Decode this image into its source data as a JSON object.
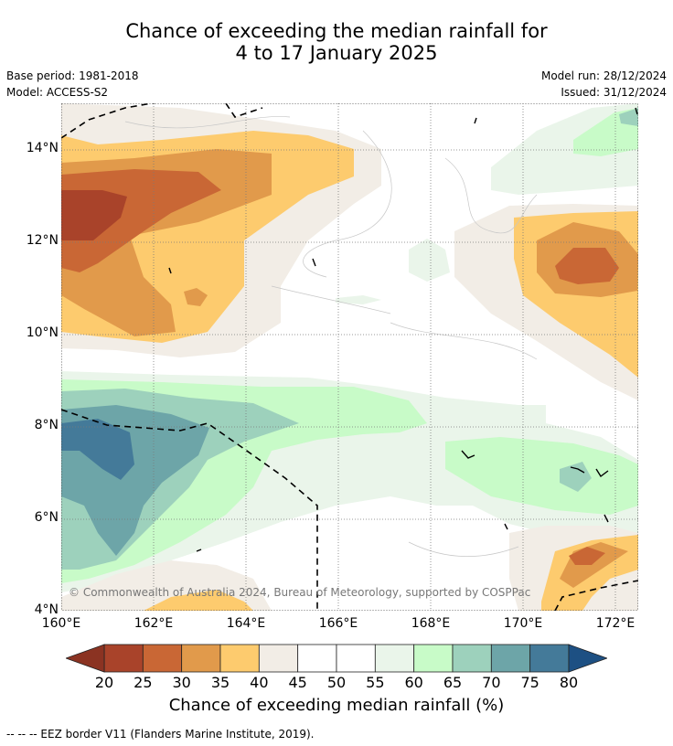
{
  "title": {
    "line1": "Chance of exceeding the median rainfall for",
    "line2": "4 to 17 January 2025"
  },
  "meta": {
    "base_period": "Base period: 1981-2018",
    "model": "Model: ACCESS-S2",
    "model_run": "Model run: 28/12/2024",
    "issued": "Issued: 31/12/2024"
  },
  "map": {
    "lat_labels": [
      "14°N",
      "12°N",
      "10°N",
      "8°N",
      "6°N",
      "4°N"
    ],
    "lon_labels": [
      "160°E",
      "162°E",
      "164°E",
      "166°E",
      "168°E",
      "170°E",
      "172°E"
    ],
    "copyright": "© Commonwealth of Australia 2024, Bureau of Meteorology, supported by COSPPac",
    "extent": {
      "lon_min": 160,
      "lon_max": 172.5,
      "lat_min": 4,
      "lat_max": 15
    }
  },
  "colorbar": {
    "ticks": [
      "20",
      "25",
      "30",
      "35",
      "40",
      "45",
      "50",
      "55",
      "60",
      "65",
      "70",
      "75",
      "80"
    ],
    "colors": [
      "#a9432a",
      "#c96735",
      "#e19a4b",
      "#fdcb6e",
      "#f2ede6",
      "#ffffff",
      "#ffffff",
      "#eaf5ea",
      "#c8fbc8",
      "#9dd1bc",
      "#6da5a8",
      "#447a99"
    ],
    "under_color": "#8b3322",
    "over_color": "#1d5083",
    "label": "Chance of exceeding median rainfall (%)"
  },
  "legend": {
    "eez": "--  --  -- EEZ border V11 (Flanders Marine Institute, 2019)."
  }
}
